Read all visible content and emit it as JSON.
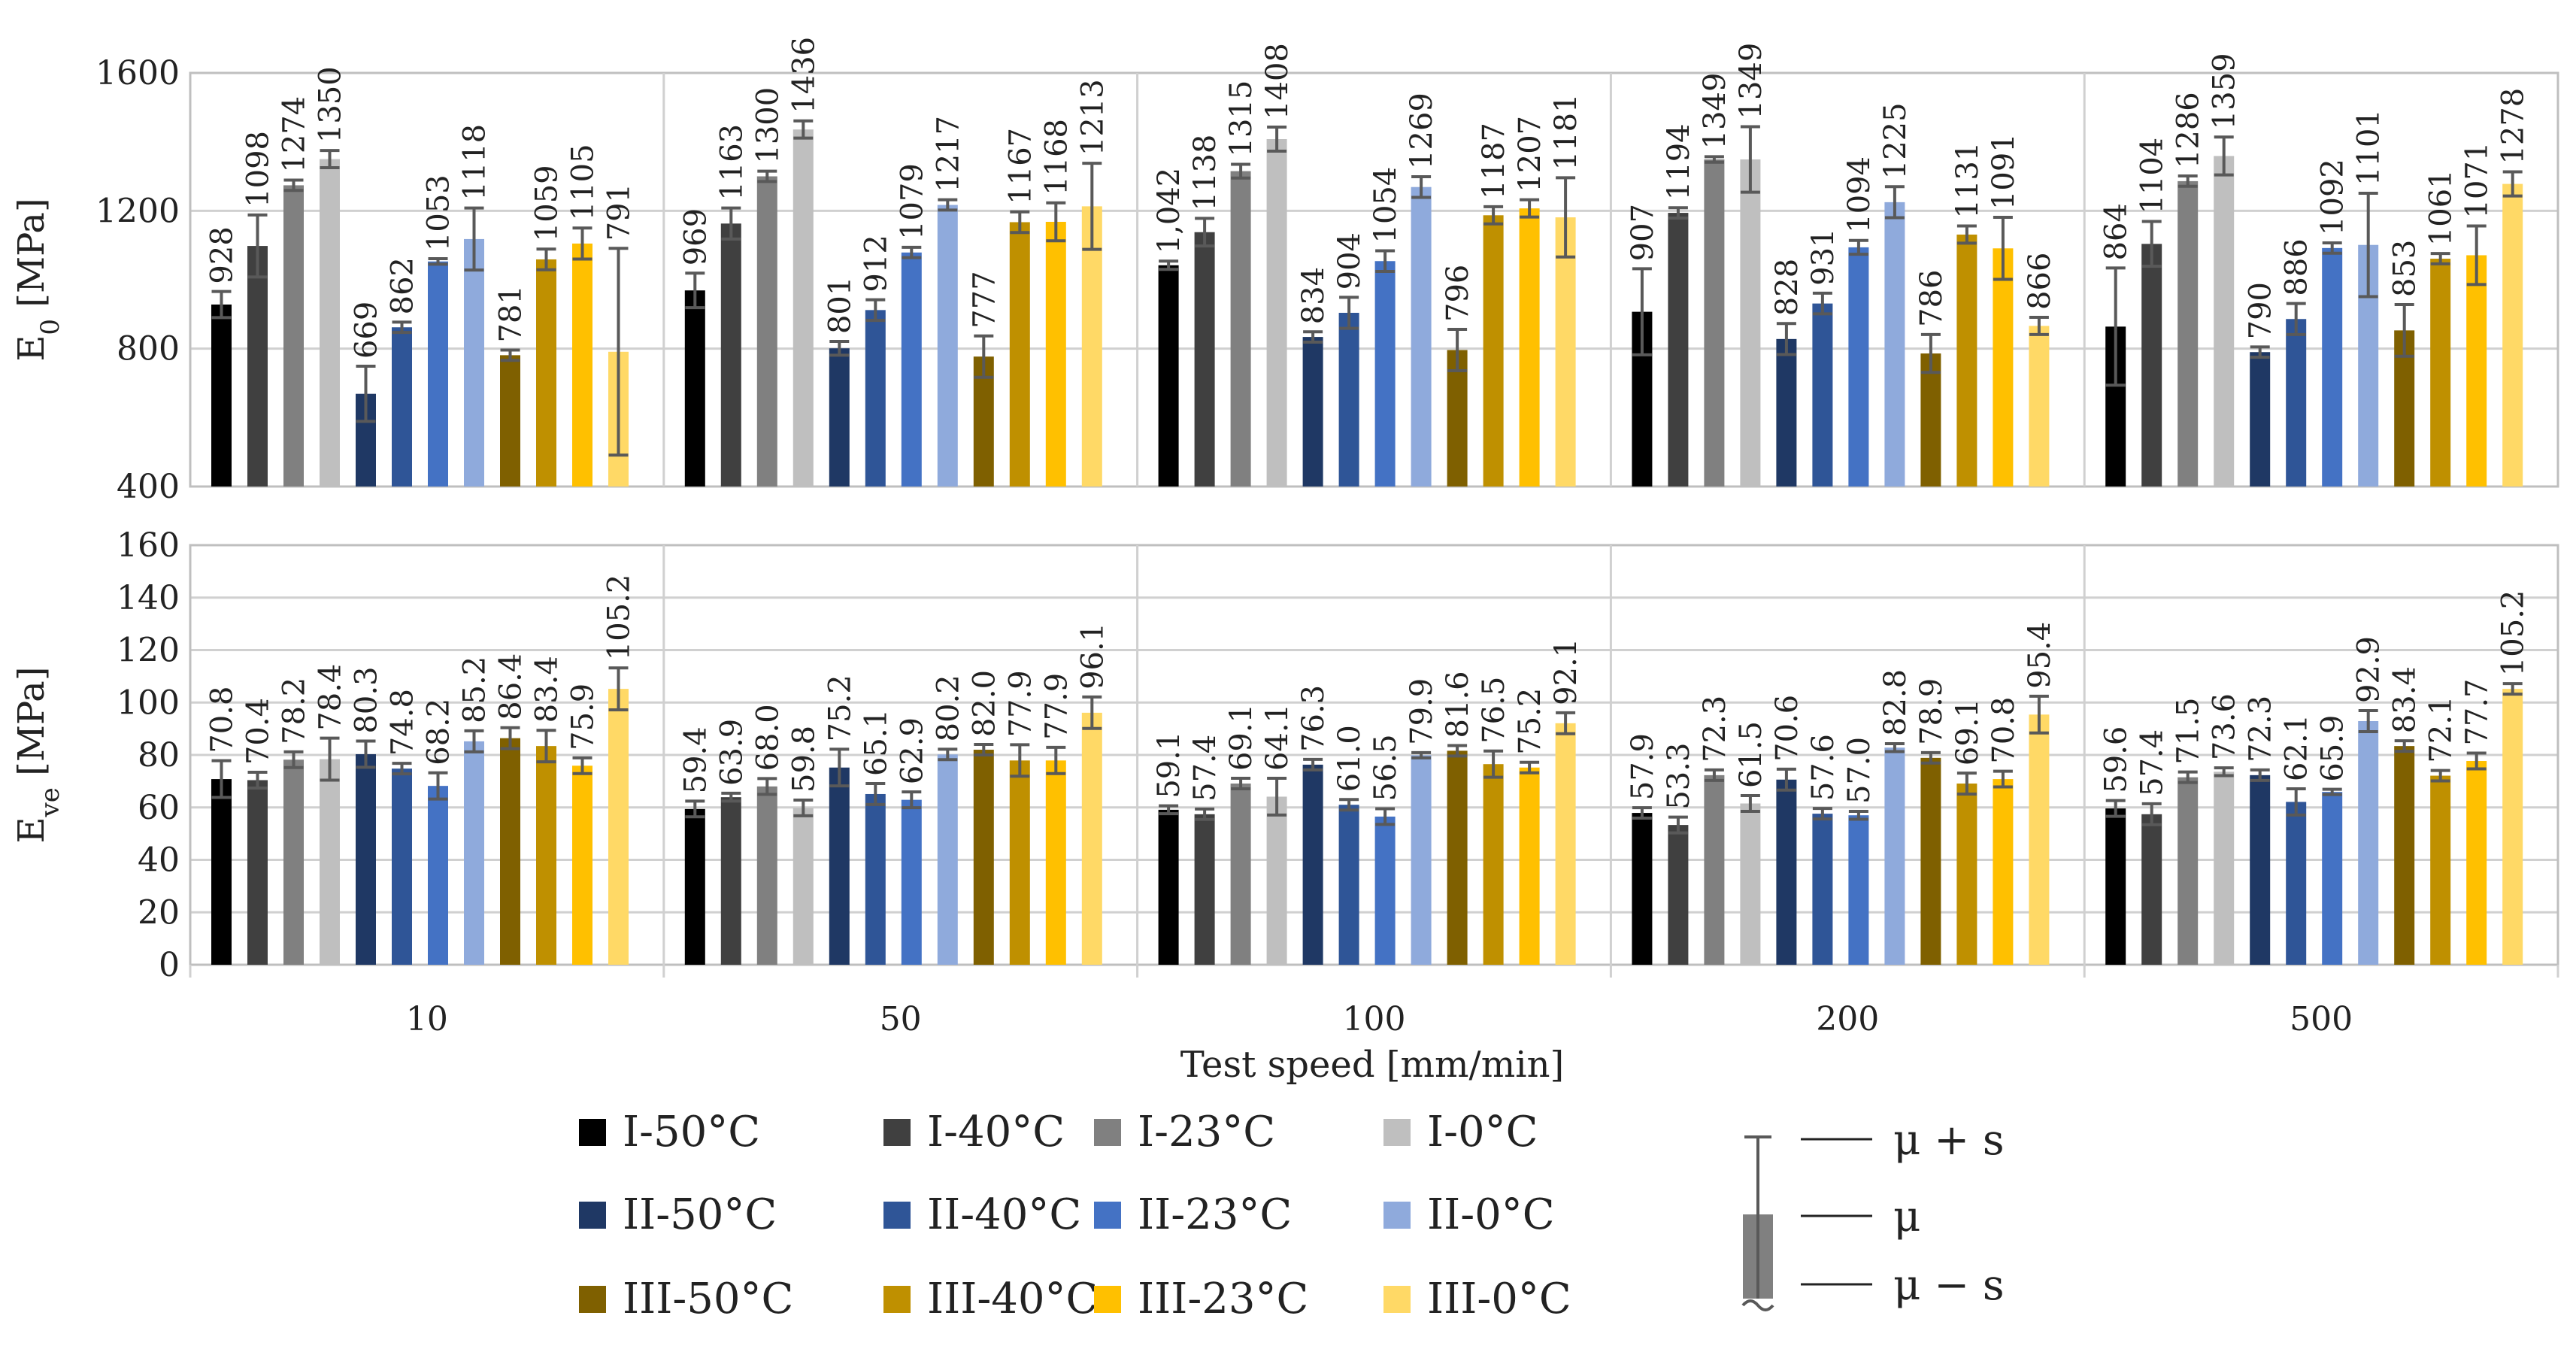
{
  "chart_data": {
    "type": "bar",
    "xlabel": "Test speed [mm/min]",
    "categories": [
      "10",
      "50",
      "100",
      "200",
      "500"
    ],
    "series_names": [
      "I-50°C",
      "I-40°C",
      "I-23°C",
      "I-0°C",
      "II-50°C",
      "II-40°C",
      "II-23°C",
      "II-0°C",
      "III-50°C",
      "III-40°C",
      "III-23°C",
      "III-0°C"
    ],
    "series_colors": [
      "#000000",
      "#404040",
      "#808080",
      "#bfbfbf",
      "#1f3864",
      "#2f5597",
      "#4472c4",
      "#8faadc",
      "#7f6000",
      "#bf9000",
      "#ffc000",
      "#ffd966"
    ],
    "panels": [
      {
        "name": "E0",
        "ylabel": "E",
        "ylabel_sub": "0",
        "ylabel_unit": " [MPa]",
        "ylim": [
          400,
          1600
        ],
        "yticks": [
          "400",
          "800",
          "1200",
          "1600"
        ],
        "series": [
          {
            "values": [
              928,
              969,
              1042,
              907,
              864
            ],
            "labels": [
              "928",
              "969",
              "1,042",
              "907",
              "864"
            ],
            "err": [
              38,
              50,
              12,
              125,
              170
            ]
          },
          {
            "values": [
              1098,
              1163,
              1138,
              1194,
              1104
            ],
            "labels": [
              "1098",
              "1163",
              "1138",
              "1194",
              "1104"
            ],
            "err": [
              90,
              45,
              40,
              15,
              65
            ]
          },
          {
            "values": [
              1274,
              1300,
              1315,
              1349,
              1286
            ],
            "labels": [
              "1274",
              "1300",
              "1315",
              "1349",
              "1286"
            ],
            "err": [
              15,
              15,
              20,
              8,
              15
            ]
          },
          {
            "values": [
              1350,
              1436,
              1408,
              1349,
              1359
            ],
            "labels": [
              "1350",
              "1436",
              "1408",
              "1349",
              "1359"
            ],
            "err": [
              25,
              25,
              35,
              95,
              55
            ]
          },
          {
            "values": [
              669,
              801,
              834,
              828,
              790
            ],
            "labels": [
              "669",
              "801",
              "834",
              "828",
              "790"
            ],
            "err": [
              80,
              20,
              15,
              45,
              15
            ]
          },
          {
            "values": [
              862,
              912,
              904,
              931,
              886
            ],
            "labels": [
              "862",
              "912",
              "904",
              "931",
              "886"
            ],
            "err": [
              15,
              30,
              45,
              30,
              45
            ]
          },
          {
            "values": [
              1053,
              1079,
              1054,
              1094,
              1092
            ],
            "labels": [
              "1053",
              "1079",
              "1054",
              "1094",
              "1092"
            ],
            "err": [
              8,
              15,
              30,
              20,
              15
            ]
          },
          {
            "values": [
              1118,
              1217,
              1269,
              1225,
              1101
            ],
            "labels": [
              "1118",
              "1217",
              "1269",
              "1225",
              "1101"
            ],
            "err": [
              90,
              15,
              30,
              45,
              150
            ]
          },
          {
            "values": [
              781,
              777,
              796,
              786,
              853
            ],
            "labels": [
              "781",
              "777",
              "796",
              "786",
              "853"
            ],
            "err": [
              15,
              60,
              60,
              55,
              75
            ]
          },
          {
            "values": [
              1059,
              1167,
              1187,
              1131,
              1061
            ],
            "labels": [
              "1059",
              "1167",
              "1187",
              "1131",
              "1061"
            ],
            "err": [
              30,
              30,
              25,
              25,
              15
            ]
          },
          {
            "values": [
              1105,
              1168,
              1207,
              1091,
              1071
            ],
            "labels": [
              "1105",
              "1168",
              "1207",
              "1091",
              "1071"
            ],
            "err": [
              45,
              55,
              25,
              90,
              85
            ]
          },
          {
            "values": [
              791,
              1213,
              1181,
              866,
              1278
            ],
            "labels": [
              "791",
              "1213",
              "1181",
              "866",
              "1278"
            ],
            "err": [
              300,
              125,
              115,
              25,
              35
            ]
          }
        ]
      },
      {
        "name": "Eve",
        "ylabel": "E",
        "ylabel_sub": "ve",
        "ylabel_unit": " [MPa]",
        "ylim": [
          0,
          160
        ],
        "yticks": [
          "0",
          "20",
          "40",
          "60",
          "80",
          "100",
          "120",
          "140",
          "160"
        ],
        "series": [
          {
            "values": [
              70.8,
              59.4,
              59.1,
              57.9,
              59.6
            ],
            "labels": [
              "70.8",
              "59.4",
              "59.1",
              "57.9",
              "59.6"
            ],
            "err": [
              7,
              3,
              1.5,
              2,
              3
            ]
          },
          {
            "values": [
              70.4,
              63.9,
              57.4,
              53.3,
              57.4
            ],
            "labels": [
              "70.4",
              "63.9",
              "57.4",
              "53.3",
              "57.4"
            ],
            "err": [
              3,
              1.5,
              2,
              3,
              4
            ]
          },
          {
            "values": [
              78.2,
              68.0,
              69.1,
              72.3,
              71.5
            ],
            "labels": [
              "78.2",
              "68.0",
              "69.1",
              "72.3",
              "71.5"
            ],
            "err": [
              3,
              3,
              2,
              2,
              2
            ]
          },
          {
            "values": [
              78.4,
              59.8,
              64.1,
              61.5,
              73.6
            ],
            "labels": [
              "78.4",
              "59.8",
              "64.1",
              "61.5",
              "73.6"
            ],
            "err": [
              8,
              3,
              7,
              3,
              1.5
            ]
          },
          {
            "values": [
              80.3,
              75.2,
              76.3,
              70.6,
              72.3
            ],
            "labels": [
              "80.3",
              "75.2",
              "76.3",
              "70.6",
              "72.3"
            ],
            "err": [
              5,
              7,
              2,
              4,
              2
            ]
          },
          {
            "values": [
              74.8,
              65.1,
              61.0,
              57.6,
              62.1
            ],
            "labels": [
              "74.8",
              "65.1",
              "61.0",
              "57.6",
              "62.1"
            ],
            "err": [
              2,
              4,
              2,
              2,
              5
            ]
          },
          {
            "values": [
              68.2,
              62.9,
              56.5,
              57.0,
              65.9
            ],
            "labels": [
              "68.2",
              "62.9",
              "56.5",
              "57.0",
              "65.9"
            ],
            "err": [
              5,
              3,
              3,
              1.5,
              1
            ]
          },
          {
            "values": [
              85.2,
              80.2,
              79.9,
              82.8,
              92.9
            ],
            "labels": [
              "85.2",
              "80.2",
              "79.9",
              "82.8",
              "92.9"
            ],
            "err": [
              4,
              2,
              1,
              1.5,
              4
            ]
          },
          {
            "values": [
              86.4,
              82.0,
              81.6,
              78.9,
              83.4
            ],
            "labels": [
              "86.4",
              "82.0",
              "81.6",
              "78.9",
              "83.4"
            ],
            "err": [
              4,
              2,
              2,
              2,
              2
            ]
          },
          {
            "values": [
              83.4,
              77.9,
              76.5,
              69.1,
              72.1
            ],
            "labels": [
              "83.4",
              "77.9",
              "76.5",
              "69.1",
              "72.1"
            ],
            "err": [
              6,
              6,
              5,
              4,
              2
            ]
          },
          {
            "values": [
              75.9,
              77.9,
              75.2,
              70.8,
              77.7
            ],
            "labels": [
              "75.9",
              "77.9",
              "75.2",
              "70.8",
              "77.7"
            ],
            "err": [
              3,
              5,
              2,
              3,
              3
            ]
          },
          {
            "values": [
              105.2,
              96.1,
              92.1,
              95.4,
              105.2
            ],
            "labels": [
              "105.2",
              "96.1",
              "92.1",
              "95.4",
              "105.2"
            ],
            "err": [
              8,
              6,
              4,
              7,
              2
            ]
          }
        ]
      }
    ]
  },
  "legend": {
    "items": [
      "I-50°C",
      "I-40°C",
      "I-23°C",
      "I-0°C",
      "II-50°C",
      "II-40°C",
      "II-23°C",
      "II-0°C",
      "III-50°C",
      "III-40°C",
      "III-23°C",
      "III-0°C"
    ],
    "stat_key": {
      "upper": "μ + s",
      "mean": "μ",
      "lower": "μ − s",
      "swatch_color": "#808080"
    }
  }
}
